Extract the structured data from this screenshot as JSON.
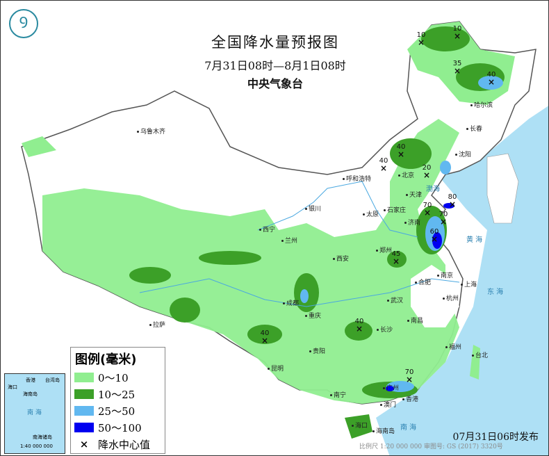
{
  "title": "全国降水量预报图",
  "period": "7月31日08时—8月1日08时",
  "issuer": "中央气象台",
  "issue_time": "07月31日06时发布",
  "scale_note": "比例尺 1:20 000 000    审图号: GS (2017) 3320号",
  "legend": {
    "title": "图例(毫米)",
    "items": [
      {
        "label": "0～10",
        "color": "#90ee90"
      },
      {
        "label": "10～25",
        "color": "#3ca028"
      },
      {
        "label": "25～50",
        "color": "#61b8f0"
      },
      {
        "label": "50～100",
        "color": "#0000f0"
      }
    ],
    "center_label": "降水中心值"
  },
  "inset": {
    "labels": [
      "香港",
      "海口",
      "海南岛",
      "台湾岛",
      "南 海",
      "南海诸岛",
      "1:40 000 000"
    ]
  },
  "seas": [
    "渤海",
    "黄 海",
    "东 海",
    "南 海"
  ],
  "cities": [
    "乌鲁木齐",
    "哈尔滨",
    "长春",
    "沈阳",
    "呼和浩特",
    "北京",
    "天津",
    "石家庄",
    "太原",
    "银川",
    "西宁",
    "兰州",
    "济南",
    "郑州",
    "西安",
    "合肥",
    "南京",
    "上海",
    "杭州",
    "武汉",
    "成都",
    "重庆",
    "长沙",
    "南昌",
    "拉萨",
    "贵阳",
    "昆明",
    "福州",
    "台北",
    "南宁",
    "广州",
    "澳门",
    "香港",
    "海口",
    "海南岛"
  ],
  "rain_centers": [
    "10",
    "10",
    "35",
    "40",
    "40",
    "40",
    "20",
    "80",
    "70",
    "70",
    "60",
    "45",
    "40",
    "40",
    "70"
  ],
  "logo_icon": "cma-logo"
}
